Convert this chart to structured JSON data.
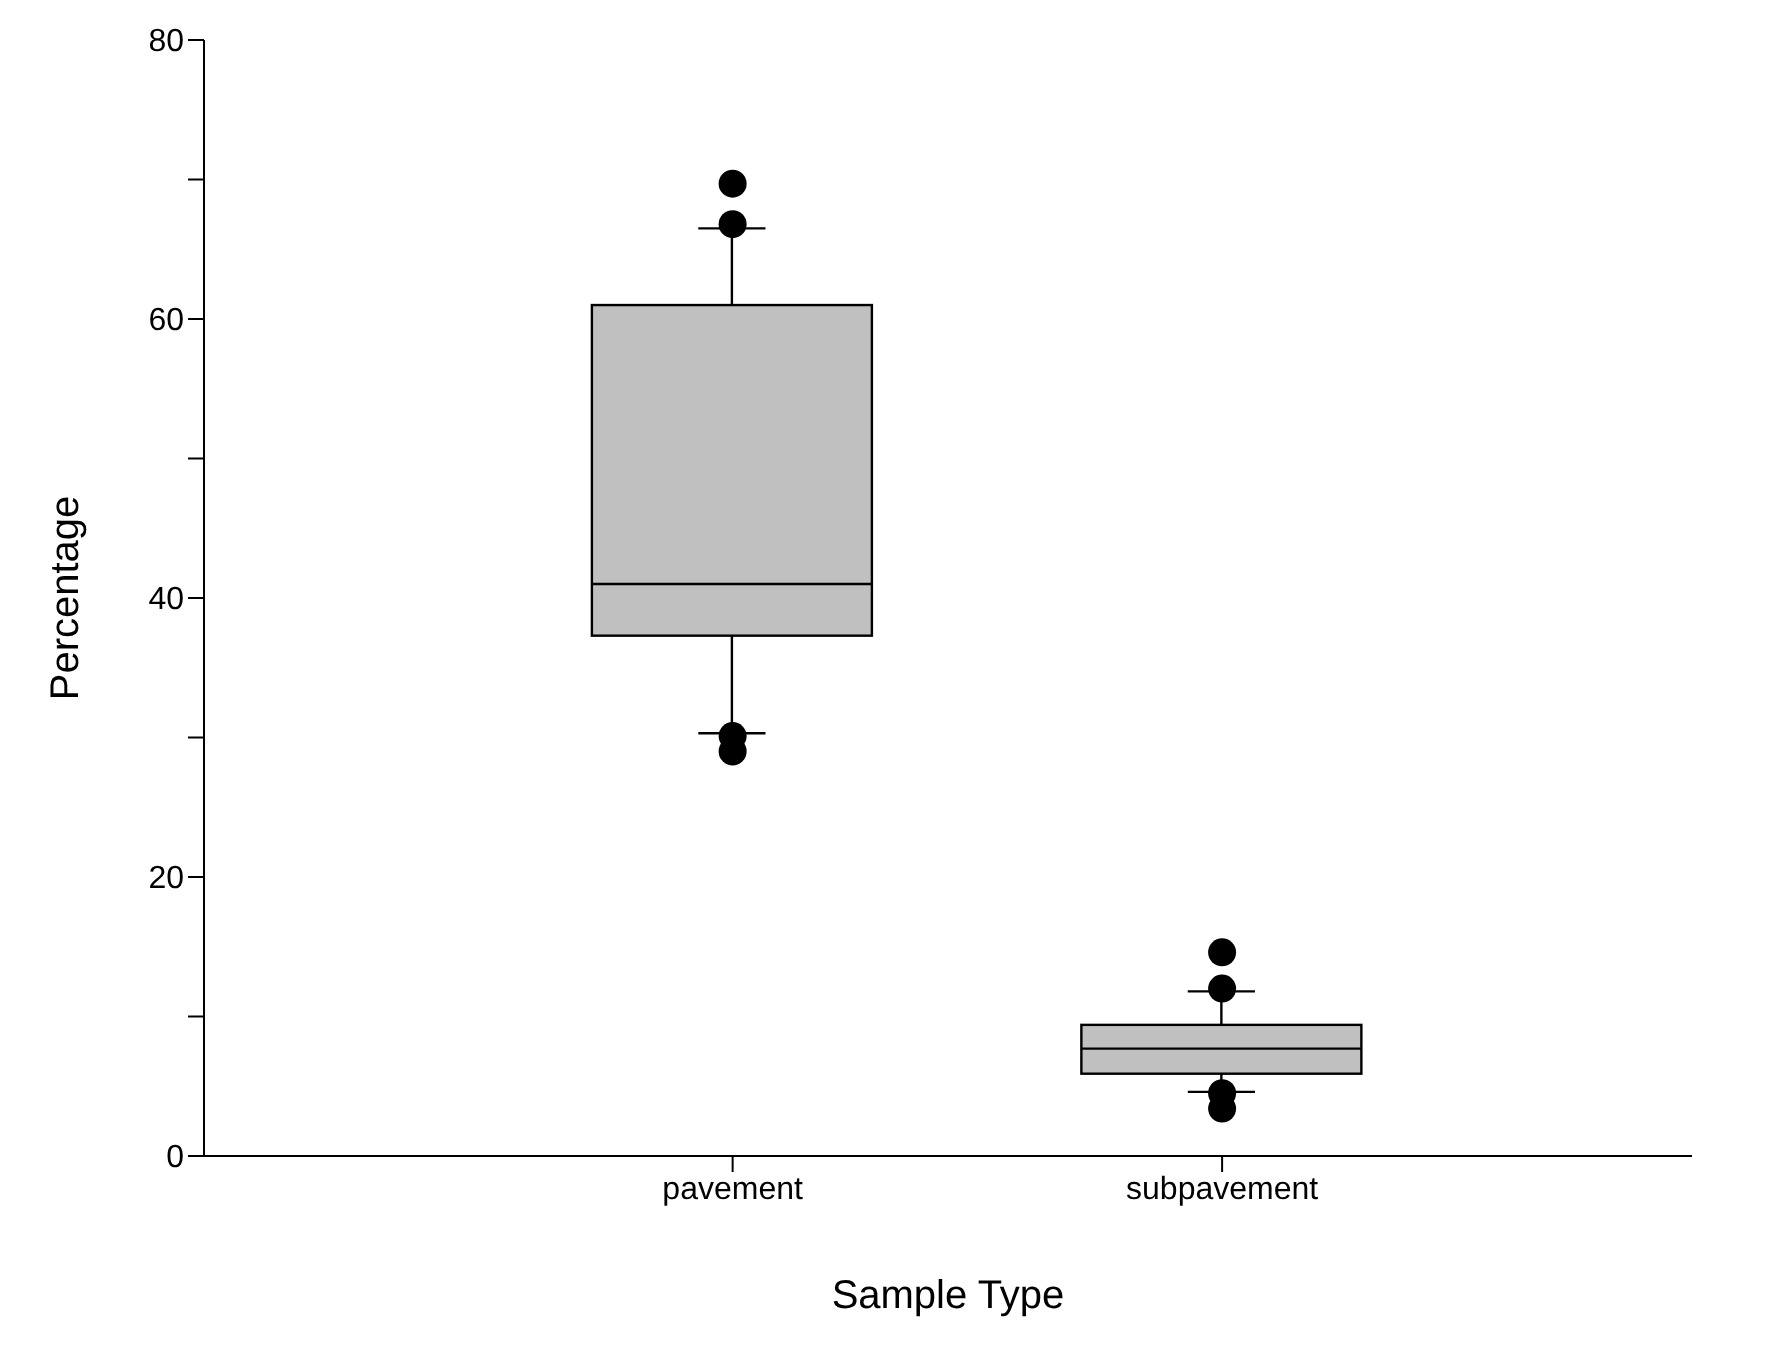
{
  "chart_data": {
    "type": "box",
    "xlabel": "Sample Type",
    "ylabel": "Percentage",
    "categories": [
      "pavement",
      "subpavement"
    ],
    "boxes": [
      {
        "low": 30.3,
        "q1": 37.3,
        "median": 41.0,
        "q3": 61.0,
        "high": 66.5,
        "outliers": [
          69.7,
          66.8,
          30.1,
          29.0
        ]
      },
      {
        "low": 4.6,
        "q1": 5.9,
        "median": 7.7,
        "q3": 9.4,
        "high": 11.8,
        "outliers": [
          14.6,
          12.0,
          4.5,
          3.4
        ]
      }
    ],
    "color": "#c0c0c0",
    "marker": "circle",
    "ylim": [
      0,
      80
    ],
    "yticks": [
      0,
      {
        "value": 10,
        "label": null
      },
      20,
      {
        "value": 30,
        "label": null
      },
      40,
      {
        "value": 50,
        "label": null
      },
      60,
      {
        "value": 70,
        "label": null
      },
      80
    ],
    "grid": false,
    "legend": false
  }
}
